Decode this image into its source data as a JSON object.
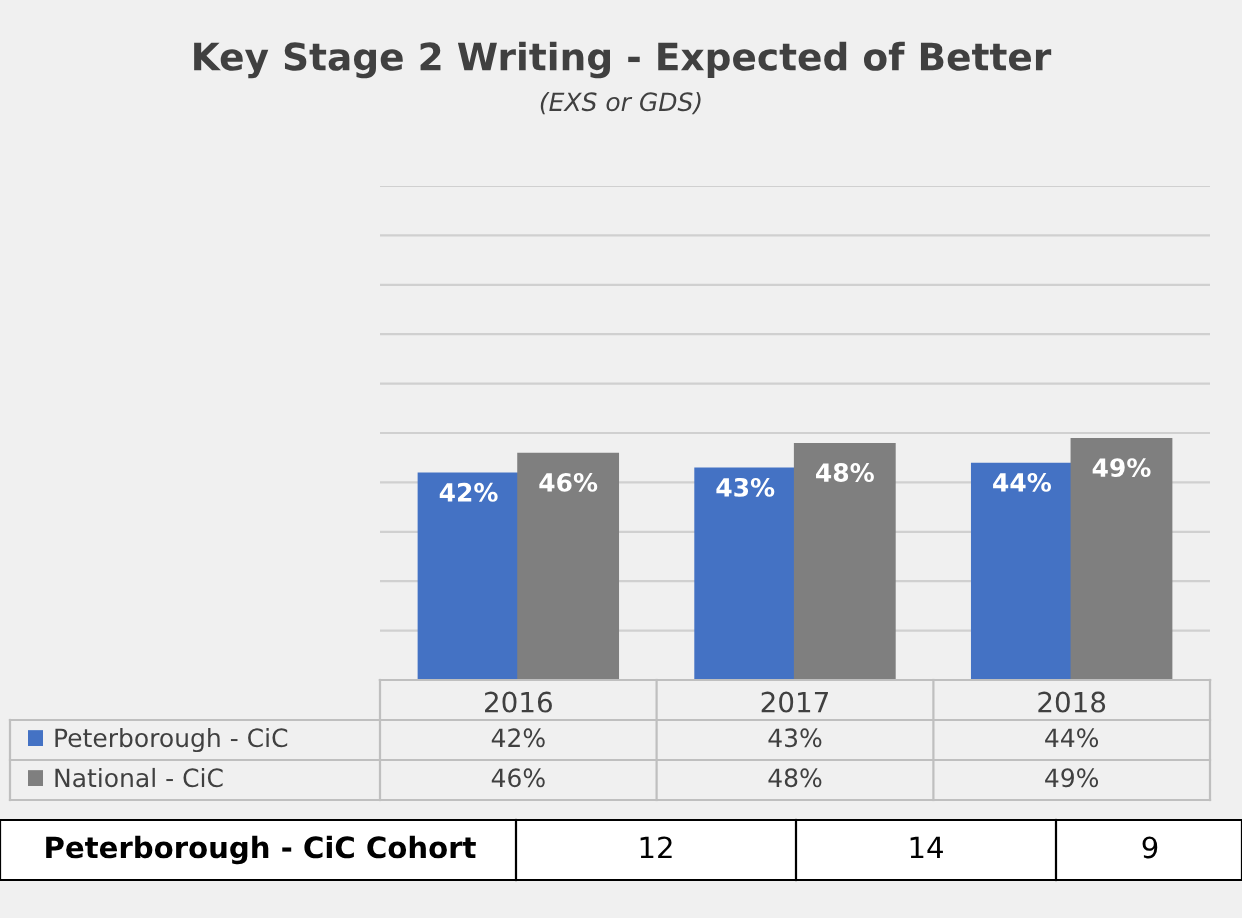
{
  "chart_data": {
    "type": "bar",
    "title": "Key Stage 2 Writing - Expected of Better",
    "subtitle": "(EXS or GDS)",
    "categories": [
      "2016",
      "2017",
      "2018"
    ],
    "series": [
      {
        "name": "Peterborough - CiC",
        "color": "#4472c4",
        "values": [
          42,
          43,
          44
        ],
        "value_labels": [
          "42%",
          "43%",
          "44%"
        ]
      },
      {
        "name": "National - CiC",
        "color": "#7f7f7f",
        "values": [
          46,
          48,
          49
        ],
        "value_labels": [
          "46%",
          "48%",
          "49%"
        ]
      }
    ],
    "ylim": [
      0,
      100
    ],
    "yticks": [
      {
        "value": 0,
        "label": null
      },
      {
        "value": 10,
        "label": null
      },
      {
        "value": 20,
        "label": null
      },
      {
        "value": 30,
        "label": null
      },
      {
        "value": 40,
        "label": null
      },
      {
        "value": 50,
        "label": null
      },
      {
        "value": 60,
        "label": null
      },
      {
        "value": 70,
        "label": null
      },
      {
        "value": 80,
        "label": null
      },
      {
        "value": 90,
        "label": null
      },
      {
        "value": 100,
        "label": null
      }
    ],
    "grid": "y",
    "legend": "bottom",
    "tick_labels": "x",
    "annotations": [
      "Peterborough - CiC Cohort",
      "12",
      "14",
      "9"
    ]
  }
}
